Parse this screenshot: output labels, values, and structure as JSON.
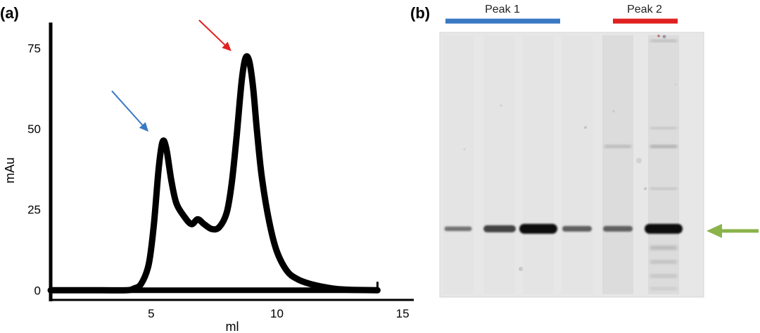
{
  "panels": {
    "a": "(a)",
    "b": "(b)"
  },
  "colors": {
    "peak1": "#3a78c4",
    "peak2": "#e02020",
    "target_arrow": "#8ab34a",
    "trace": "#000000"
  },
  "chart_data": {
    "type": "line",
    "xlabel": "ml",
    "ylabel": "mAu",
    "xlim": [
      1,
      15.5
    ],
    "ylim": [
      -3,
      83
    ],
    "xticks": [
      5,
      10,
      15
    ],
    "yticks": [
      0,
      25,
      50,
      75
    ],
    "grid": false,
    "series": [
      {
        "x": [
          1.0,
          3.0,
          4.0,
          4.3,
          4.6,
          4.9,
          5.1,
          5.3,
          5.45,
          5.6,
          5.8,
          6.0,
          6.3,
          6.6,
          6.85,
          7.1,
          7.4,
          7.7,
          8.0,
          8.2,
          8.4,
          8.6,
          8.75,
          8.9,
          9.05,
          9.2,
          9.4,
          9.7,
          10.0,
          10.4,
          10.8,
          11.3,
          12.0,
          12.5,
          13.0,
          14.0
        ],
        "values": [
          0,
          0,
          0,
          0.5,
          2,
          8,
          20,
          38,
          46,
          44,
          34,
          27,
          23,
          20.5,
          22,
          20.5,
          19,
          19.5,
          24,
          33,
          48,
          65,
          72,
          71,
          63,
          50,
          35,
          21,
          12,
          6,
          3.5,
          2,
          0.8,
          0.3,
          0.1,
          0
        ]
      }
    ],
    "annotations": [
      {
        "type": "arrow",
        "target_x": 5.45,
        "target_y": 50,
        "color": "#3a78c4"
      },
      {
        "type": "arrow",
        "target_x": 8.75,
        "target_y": 75,
        "color": "#e02020"
      }
    ]
  },
  "gel": {
    "peak1_label": "Peak 1",
    "peak2_label": "Peak 2",
    "lanes": [
      {
        "main_band": 0.25
      },
      {
        "main_band": 0.6
      },
      {
        "main_band": 1.0
      },
      {
        "main_band": 0.4
      },
      {
        "main_band": 0.4,
        "extra_bands": true
      },
      {
        "main_band": 1.0,
        "extra_bands": true
      }
    ]
  }
}
